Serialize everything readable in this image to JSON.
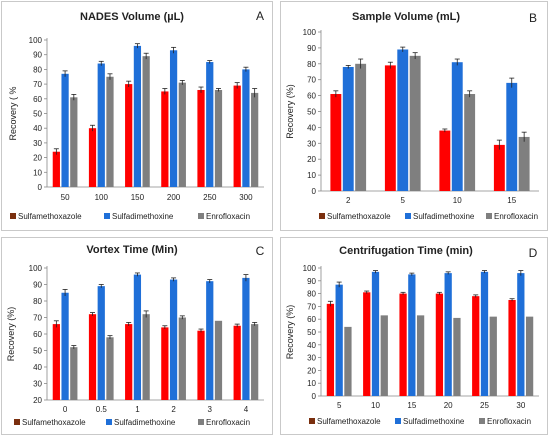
{
  "colors": {
    "Sulfamethoxazole": "#ff0000",
    "Sulfadimethoxine": "#1f6fd8",
    "Enrofloxacin": "#7f7f7f",
    "legend_Sulfamethoxazole": "#7a2f0e"
  },
  "chart_data": [
    {
      "letter": "A",
      "type": "bar",
      "title": "NADES Volume (µL)",
      "xlabel": "",
      "ylabel": "Recovery ( %",
      "ylim": [
        0,
        100
      ],
      "yticks": [
        0,
        10,
        20,
        30,
        40,
        50,
        60,
        70,
        80,
        90,
        100
      ],
      "categories": [
        "50",
        "100",
        "150",
        "200",
        "250",
        "300"
      ],
      "legend_position": "bottom",
      "series": [
        {
          "name": "Sulfamethoxazole",
          "values": [
            24,
            40,
            70,
            65,
            66,
            69
          ],
          "errors": [
            2,
            2,
            2,
            2,
            2,
            2
          ]
        },
        {
          "name": "Sulfadimethoxine",
          "values": [
            77,
            84,
            96,
            93,
            85,
            80
          ],
          "errors": [
            2,
            1.5,
            1.5,
            2,
            1,
            1.5
          ]
        },
        {
          "name": "Enrofloxacin",
          "values": [
            61,
            75,
            89,
            71,
            66,
            64
          ],
          "errors": [
            2,
            2,
            2,
            1.5,
            1,
            3
          ]
        }
      ]
    },
    {
      "letter": "B",
      "type": "bar",
      "title": "Sample Volume (mL)",
      "xlabel": "",
      "ylabel": "Recovery (%)",
      "ylim": [
        0,
        100
      ],
      "yticks": [
        0,
        10,
        20,
        30,
        40,
        50,
        60,
        70,
        80,
        90,
        100
      ],
      "categories": [
        "2",
        "5",
        "10",
        "15"
      ],
      "legend_position": "bottom",
      "series": [
        {
          "name": "Sulfamethoxazole",
          "values": [
            61,
            79,
            38,
            29
          ],
          "errors": [
            2,
            2,
            1,
            3
          ]
        },
        {
          "name": "Sulfadimethoxine",
          "values": [
            78,
            89,
            81,
            68
          ],
          "errors": [
            1,
            1.5,
            2,
            3
          ]
        },
        {
          "name": "Enrofloxacin",
          "values": [
            80,
            85,
            61,
            34
          ],
          "errors": [
            3,
            2,
            2,
            3
          ]
        }
      ]
    },
    {
      "letter": "C",
      "type": "bar",
      "title": "Vortex Time (Min)",
      "xlabel": "",
      "ylabel": "Recovery (%)",
      "ylim": [
        20,
        100
      ],
      "yticks": [
        20,
        30,
        40,
        50,
        60,
        70,
        80,
        90,
        100
      ],
      "categories": [
        "0",
        "0.5",
        "1",
        "2",
        "3",
        "4"
      ],
      "legend_position": "bottom",
      "series": [
        {
          "name": "Sulfamethoxazole",
          "values": [
            66,
            72,
            66,
            64,
            62,
            65
          ],
          "errors": [
            2,
            1,
            1,
            1,
            1,
            1
          ]
        },
        {
          "name": "Sulfadimethoxine",
          "values": [
            85,
            89,
            96,
            93,
            92,
            94
          ],
          "errors": [
            2,
            1,
            1,
            1,
            1,
            2
          ]
        },
        {
          "name": "Enrofloxacin",
          "values": [
            52,
            58,
            72,
            70,
            68,
            66
          ],
          "errors": [
            1,
            1,
            2,
            1,
            0,
            1
          ]
        }
      ]
    },
    {
      "letter": "D",
      "type": "bar",
      "title": "Centrifugation Time (min)",
      "xlabel": "",
      "ylabel": "Recovery (%)",
      "ylim": [
        0,
        100
      ],
      "yticks": [
        0,
        10,
        20,
        30,
        40,
        50,
        60,
        70,
        80,
        90,
        100
      ],
      "categories": [
        "5",
        "10",
        "15",
        "20",
        "25",
        "30"
      ],
      "legend_position": "bottom",
      "series": [
        {
          "name": "Sulfamethoxazole",
          "values": [
            72,
            81,
            80,
            80,
            78,
            75
          ],
          "errors": [
            2,
            1,
            1,
            1,
            1,
            1
          ]
        },
        {
          "name": "Sulfadimethoxine",
          "values": [
            87,
            97,
            95,
            96,
            97,
            96
          ],
          "errors": [
            2,
            1,
            1,
            1,
            1,
            2
          ]
        },
        {
          "name": "Enrofloxacin",
          "values": [
            54,
            63,
            63,
            61,
            62,
            62
          ],
          "errors": [
            0,
            0,
            0,
            0,
            0,
            0
          ]
        }
      ]
    }
  ]
}
